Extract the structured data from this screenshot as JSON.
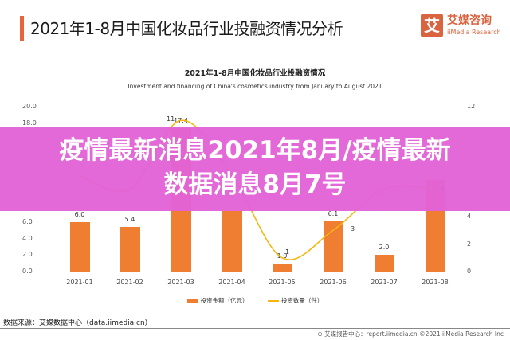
{
  "header": {
    "title": "2021年1-8月中国化妆品行业投融资情况分析",
    "logo_glyph": "艾",
    "logo_cn": "艾媒咨询",
    "logo_en": "iiMedia Research"
  },
  "chart_data": {
    "type": "bar+line",
    "title": "2021年1-8月中国化妆品行业投融资情况",
    "subtitle": "Investment and financing of China's cosmetics industry from January to August 2021",
    "categories": [
      "2021-01",
      "2021-02",
      "2021-03",
      "2021-04",
      "2021-05",
      "2021-06",
      "2021-07",
      "2021-08"
    ],
    "series": [
      {
        "name": "投资金额（亿元）",
        "type": "bar",
        "axis": "left",
        "color": "#ef7e33",
        "values": [
          6.0,
          5.4,
          17.4,
          7.3,
          1.0,
          6.1,
          2.0,
          11.1
        ],
        "labels": [
          "6.0",
          "5.4",
          "17.4",
          "",
          "1.0",
          "6.1",
          "2.0",
          ""
        ]
      },
      {
        "name": "投资数量（件）",
        "type": "line",
        "axis": "right",
        "color": "#f6b60e",
        "values": [
          7,
          6,
          11,
          7,
          1,
          3,
          6,
          6
        ],
        "labels": [
          "",
          "",
          "11",
          "",
          "1",
          "3",
          "",
          "6"
        ]
      }
    ],
    "y_left": {
      "ticks": [
        "20.0",
        "18.0",
        "6.0",
        "4.0",
        "2.0",
        "0.0"
      ],
      "range": [
        0,
        20
      ]
    },
    "y_right": {
      "ticks": [
        "12",
        "4",
        "2",
        "0"
      ],
      "range": [
        0,
        12
      ]
    },
    "legend_position": "bottom",
    "grid": false
  },
  "legend": {
    "bar": "投资金额（亿元）",
    "line": "投资数量（件）"
  },
  "source": "数据来源：艾媒数据中心（data.iimedia.cn）",
  "footer": "艾媒报告中心：report.iimedia.cn   ©2021  iiMedia Research  Inc",
  "banner": {
    "line1": "疫情最新消息2021年8月/疫情最新",
    "line2": "数据消息8月7号",
    "color": "#e262d6"
  }
}
